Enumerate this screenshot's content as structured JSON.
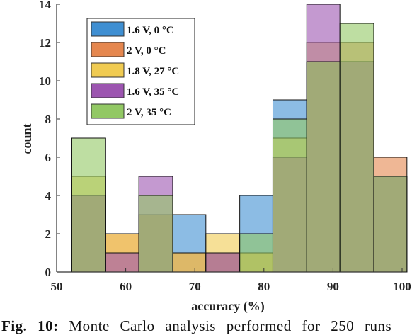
{
  "caption": {
    "label": "Fig. 10:",
    "text": "Monte Carlo analysis performed for 250 runs"
  },
  "chart_data": {
    "type": "histogram",
    "xlabel": "accuracy (%)",
    "ylabel": "count",
    "xlim": [
      50,
      100
    ],
    "ylim": [
      0,
      14
    ],
    "xticks": [
      50,
      60,
      70,
      80,
      90,
      100
    ],
    "yticks": [
      0,
      2,
      4,
      6,
      8,
      10,
      12,
      14
    ],
    "bin_edges": [
      52.2,
      57.1,
      61.9,
      66.8,
      71.6,
      76.5,
      81.3,
      86.2,
      91.0,
      95.9,
      100.7
    ],
    "legend_position": "top-left",
    "series": [
      {
        "name": "1.6 V, 0 °C",
        "color": "#3f8fd2",
        "values": [
          4,
          0,
          3,
          3,
          1,
          4,
          9,
          11,
          11,
          5
        ]
      },
      {
        "name": "2 V, 0 °C",
        "color": "#e5874f",
        "values": [
          4,
          2,
          3,
          1,
          1,
          1,
          6,
          11,
          12,
          6
        ]
      },
      {
        "name": "1.8 V, 27 °C",
        "color": "#f0cb52",
        "values": [
          5,
          2,
          3,
          1,
          2,
          1,
          7,
          12,
          11,
          5
        ]
      },
      {
        "name": "1.6 V, 35 °C",
        "color": "#9c55b0",
        "values": [
          4,
          1,
          5,
          0,
          1,
          0,
          6,
          14,
          11,
          5
        ]
      },
      {
        "name": "2 V, 35 °C",
        "color": "#92c864",
        "values": [
          7,
          0,
          4,
          0,
          0,
          2,
          8,
          11,
          13,
          5
        ]
      }
    ]
  }
}
